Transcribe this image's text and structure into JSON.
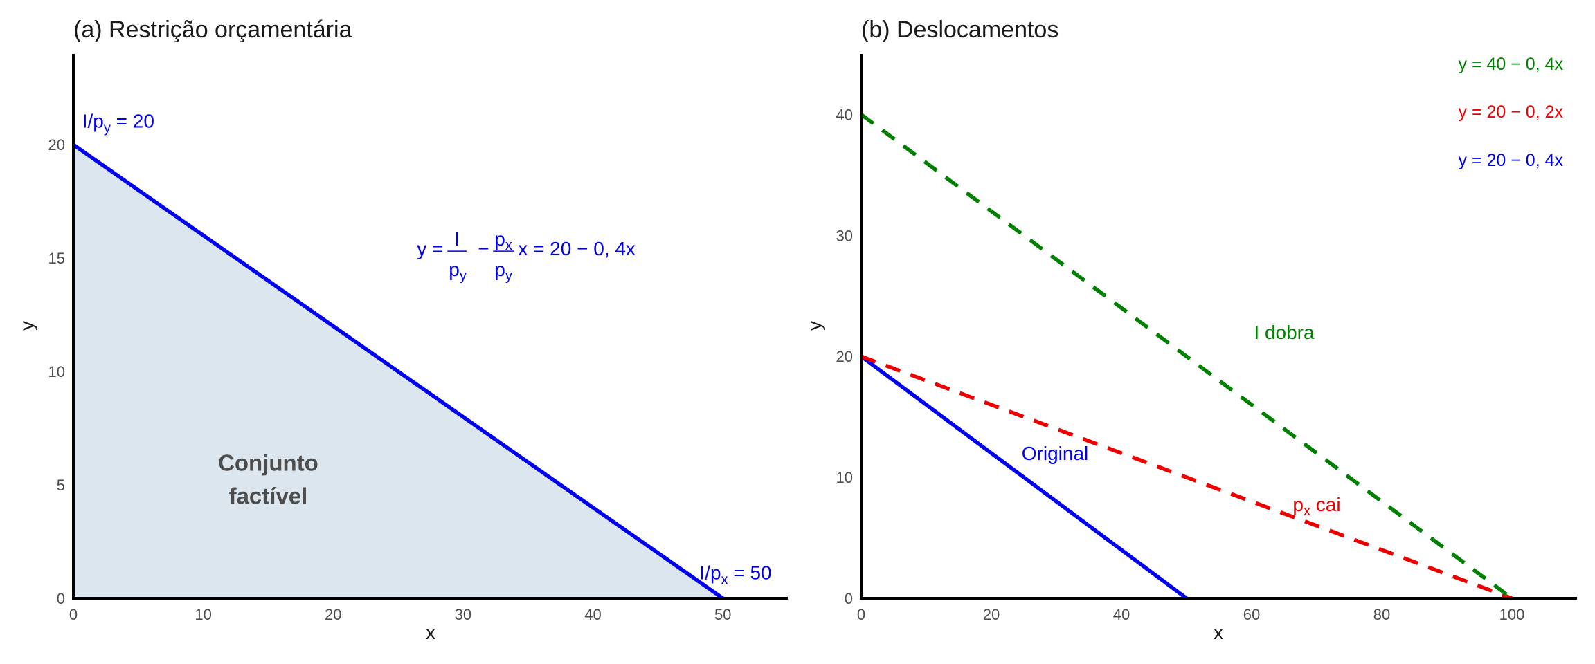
{
  "colors": {
    "original": "#0000ee",
    "income": "#008000",
    "price": "#ee0000",
    "fill": "#dbe6ee",
    "axis": "#000000",
    "tick_text": "#4d4d4d"
  },
  "chart_data": [
    {
      "type": "line",
      "title": "(a) Restrição orçamentária",
      "xlabel": "x",
      "ylabel": "y",
      "xlim": [
        0,
        55
      ],
      "ylim": [
        0,
        24
      ],
      "x_ticks": [
        0,
        10,
        20,
        30,
        40,
        50
      ],
      "y_ticks": [
        0,
        5,
        10,
        15,
        20
      ],
      "grid": false,
      "series": [
        {
          "values_x": [
            0,
            50
          ],
          "values_y": [
            20,
            0
          ],
          "style": "solid",
          "color": "#0000ee"
        }
      ],
      "shaded_region": {
        "vertices": [
          [
            0,
            0
          ],
          [
            0,
            20
          ],
          [
            50,
            0
          ]
        ],
        "color": "#dbe6ee"
      },
      "annotations": {
        "y_intercept": {
          "lhs": "I/p",
          "sub": "y",
          "rhs": " = 20",
          "at": [
            1,
            21
          ]
        },
        "x_intercept": {
          "lhs": "I/p",
          "sub": "x",
          "rhs": " = 50",
          "at": [
            48.2,
            1.2
          ]
        },
        "equation": {
          "lhs": "y =",
          "frac1_num": "I",
          "frac1_den": "p",
          "frac1_den_sub": "y",
          "minus": "−",
          "frac2_num": "p",
          "frac2_num_sub": "x",
          "frac2_den": "p",
          "frac2_den_sub": "y",
          "rhs": "x = 20 − 0, 4x",
          "at": [
            26.5,
            15
          ]
        },
        "region_line1": "Conjunto",
        "region_line2": "factível",
        "region_at": [
          15,
          5.5
        ]
      }
    },
    {
      "type": "line",
      "title": "(b) Deslocamentos",
      "xlabel": "x",
      "ylabel": "y",
      "xlim": [
        0,
        110
      ],
      "ylim": [
        0,
        45
      ],
      "x_ticks": [
        0,
        20,
        40,
        60,
        80,
        100
      ],
      "y_ticks": [
        0,
        10,
        20,
        30,
        40
      ],
      "grid": false,
      "series": [
        {
          "values_x": [
            0,
            50
          ],
          "values_y": [
            20,
            0
          ],
          "style": "solid",
          "color": "#0000ee"
        },
        {
          "values_x": [
            0,
            100
          ],
          "values_y": [
            20,
            0
          ],
          "style": "dashed",
          "color": "#ee0000"
        },
        {
          "values_x": [
            0,
            100
          ],
          "values_y": [
            40,
            0
          ],
          "style": "dashed",
          "color": "#008000"
        }
      ],
      "labels": {
        "original": {
          "text": "Original",
          "at": [
            30,
            12
          ]
        },
        "price_p": "p",
        "price_sub": "x",
        "price_rest": " cai",
        "price_at": [
          70,
          8
        ],
        "income": {
          "text": "I dobra",
          "at": [
            65,
            22
          ]
        }
      },
      "legend": {
        "placement": "top-right",
        "items": [
          {
            "text": "y = 40 − 0, 4x",
            "color": "#008000"
          },
          {
            "text": "y = 20 − 0, 2x",
            "color": "#ee0000"
          },
          {
            "text": "y = 20 − 0, 4x",
            "color": "#0000ee"
          }
        ]
      }
    }
  ]
}
